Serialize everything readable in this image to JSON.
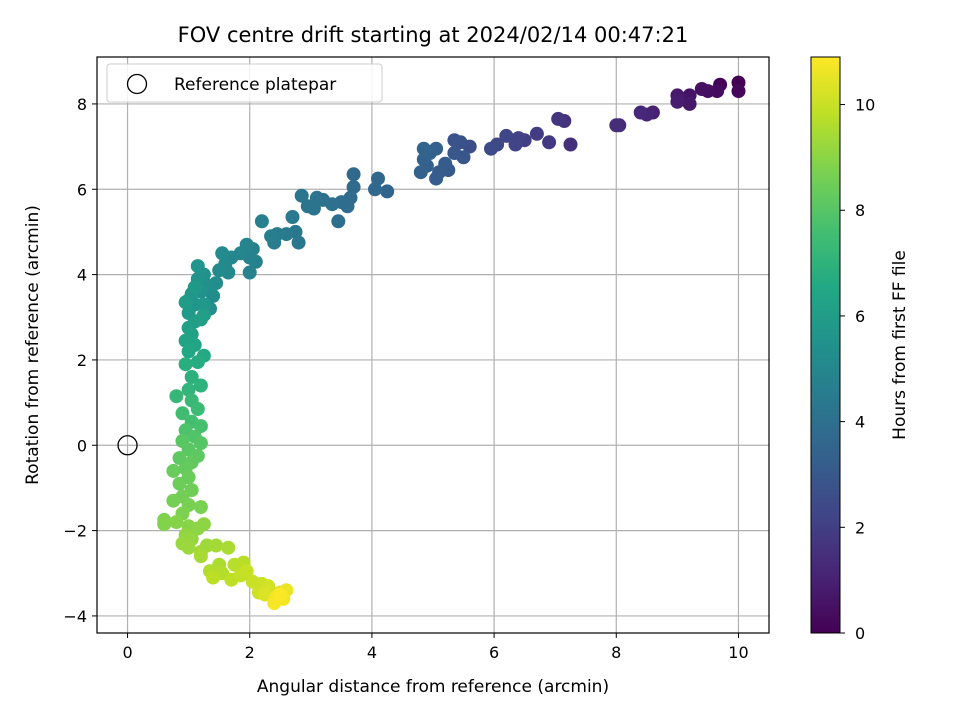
{
  "chart_data": {
    "type": "scatter",
    "title": "FOV centre drift starting at 2024/02/14 00:47:21",
    "xlabel": "Angular distance from reference (arcmin)",
    "ylabel": "Rotation from reference (arcmin)",
    "xlim": [
      -0.5,
      10.5
    ],
    "ylim": [
      -4.4,
      9.1
    ],
    "x_ticks": [
      0,
      2,
      4,
      6,
      8,
      10
    ],
    "y_ticks": [
      -4,
      -2,
      0,
      2,
      4,
      6,
      8
    ],
    "x_tick_labels": [
      "0",
      "2",
      "4",
      "6",
      "8",
      "10"
    ],
    "y_tick_labels": [
      "−4",
      "−2",
      "0",
      "2",
      "4",
      "6",
      "8"
    ],
    "grid": true,
    "legend": {
      "position": "top-left",
      "label": "Reference platepar"
    },
    "reference_point": {
      "x": 0,
      "y": 0
    },
    "colorbar": {
      "label": "Hours from first FF file",
      "range": [
        0,
        10.9
      ],
      "ticks": [
        0,
        2,
        4,
        6,
        8,
        10
      ],
      "tick_labels": [
        "0",
        "2",
        "4",
        "6",
        "8",
        "10"
      ],
      "colormap": "viridis"
    },
    "series": [
      {
        "points": [
          [
            10.0,
            8.5,
            0.0
          ],
          [
            9.7,
            8.45,
            0.1
          ],
          [
            10.0,
            8.3,
            0.2
          ],
          [
            9.65,
            8.3,
            0.3
          ],
          [
            9.5,
            8.3,
            0.4
          ],
          [
            9.4,
            8.35,
            0.5
          ],
          [
            9.2,
            8.2,
            0.6
          ],
          [
            9.2,
            8.0,
            0.7
          ],
          [
            9.0,
            8.2,
            0.8
          ],
          [
            9.0,
            8.05,
            0.9
          ],
          [
            8.6,
            7.8,
            1.0
          ],
          [
            8.5,
            7.75,
            1.1
          ],
          [
            8.4,
            7.8,
            1.2
          ],
          [
            8.05,
            7.5,
            1.3
          ],
          [
            8.0,
            7.5,
            1.4
          ],
          [
            7.25,
            7.05,
            1.5
          ],
          [
            7.15,
            7.6,
            1.6
          ],
          [
            7.05,
            7.65,
            1.7
          ],
          [
            6.9,
            7.1,
            1.8
          ],
          [
            6.7,
            7.3,
            1.9
          ],
          [
            6.5,
            7.15,
            2.0
          ],
          [
            6.4,
            7.2,
            2.1
          ],
          [
            6.35,
            7.05,
            2.2
          ],
          [
            6.2,
            7.25,
            2.3
          ],
          [
            6.05,
            7.05,
            2.4
          ],
          [
            5.95,
            6.95,
            2.5
          ],
          [
            5.6,
            7.0,
            2.6
          ],
          [
            5.45,
            7.1,
            2.7
          ],
          [
            5.35,
            7.15,
            2.8
          ],
          [
            5.5,
            6.75,
            2.9
          ],
          [
            5.35,
            6.85,
            3.0
          ],
          [
            5.25,
            6.45,
            3.05
          ],
          [
            5.2,
            6.6,
            3.1
          ],
          [
            5.1,
            6.4,
            3.15
          ],
          [
            5.05,
            6.25,
            3.2
          ],
          [
            5.05,
            6.95,
            3.25
          ],
          [
            4.9,
            6.55,
            3.3
          ],
          [
            4.85,
            6.7,
            3.35
          ],
          [
            4.8,
            6.4,
            3.4
          ],
          [
            4.95,
            6.85,
            3.45
          ],
          [
            4.85,
            6.95,
            3.5
          ],
          [
            4.25,
            5.95,
            3.55
          ],
          [
            4.1,
            6.25,
            3.6
          ],
          [
            4.05,
            6.0,
            3.65
          ],
          [
            3.7,
            6.35,
            3.7
          ],
          [
            3.7,
            6.05,
            3.75
          ],
          [
            3.65,
            5.8,
            3.8
          ],
          [
            3.6,
            5.6,
            3.85
          ],
          [
            3.5,
            5.7,
            3.9
          ],
          [
            3.45,
            5.25,
            3.95
          ],
          [
            3.35,
            5.65,
            4.0
          ],
          [
            3.2,
            5.75,
            4.05
          ],
          [
            3.1,
            5.8,
            4.1
          ],
          [
            3.05,
            5.55,
            4.15
          ],
          [
            2.95,
            5.6,
            4.2
          ],
          [
            2.85,
            5.85,
            4.25
          ],
          [
            2.8,
            4.75,
            4.3
          ],
          [
            2.75,
            5.0,
            4.35
          ],
          [
            2.7,
            5.35,
            4.4
          ],
          [
            2.6,
            4.95,
            4.45
          ],
          [
            2.45,
            4.95,
            4.5
          ],
          [
            2.4,
            4.75,
            4.55
          ],
          [
            2.35,
            4.9,
            4.6
          ],
          [
            2.2,
            5.25,
            4.65
          ],
          [
            2.1,
            4.3,
            4.7
          ],
          [
            2.05,
            4.6,
            4.75
          ],
          [
            2.0,
            4.4,
            4.8
          ],
          [
            2.0,
            4.05,
            4.85
          ],
          [
            1.95,
            4.7,
            4.9
          ],
          [
            1.85,
            4.5,
            4.95
          ],
          [
            1.7,
            4.4,
            5.0
          ],
          [
            1.65,
            4.05,
            5.05
          ],
          [
            1.6,
            4.25,
            5.1
          ],
          [
            1.55,
            4.5,
            5.15
          ],
          [
            1.5,
            4.1,
            5.2
          ],
          [
            1.45,
            3.8,
            5.25
          ],
          [
            1.4,
            3.5,
            5.3
          ],
          [
            1.35,
            3.2,
            5.35
          ],
          [
            1.3,
            3.75,
            5.4
          ],
          [
            1.25,
            4.0,
            5.45
          ],
          [
            1.2,
            3.6,
            5.5
          ],
          [
            1.15,
            3.9,
            5.55
          ],
          [
            1.15,
            4.2,
            5.6
          ],
          [
            1.1,
            3.3,
            5.65
          ],
          [
            1.05,
            3.55,
            5.7
          ],
          [
            1.0,
            3.4,
            5.75
          ],
          [
            1.25,
            3.3,
            5.8
          ],
          [
            1.1,
            3.7,
            5.85
          ],
          [
            1.0,
            3.1,
            5.9
          ],
          [
            0.95,
            3.35,
            5.95
          ],
          [
            1.25,
            3.05,
            6.0
          ],
          [
            1.1,
            2.9,
            6.05
          ],
          [
            1.0,
            2.75,
            6.1
          ],
          [
            1.2,
            2.95,
            6.15
          ],
          [
            1.05,
            2.6,
            6.2
          ],
          [
            0.95,
            2.45,
            6.3
          ],
          [
            1.1,
            2.35,
            6.4
          ],
          [
            1.0,
            2.2,
            6.5
          ],
          [
            1.25,
            2.1,
            6.6
          ],
          [
            1.15,
            1.95,
            6.7
          ],
          [
            0.95,
            1.9,
            6.8
          ],
          [
            1.05,
            1.6,
            6.9
          ],
          [
            1.2,
            1.4,
            7.0
          ],
          [
            1.0,
            1.3,
            7.1
          ],
          [
            0.8,
            1.15,
            7.2
          ],
          [
            1.05,
            1.05,
            7.3
          ],
          [
            1.15,
            0.85,
            7.4
          ],
          [
            0.9,
            0.75,
            7.5
          ],
          [
            1.05,
            0.55,
            7.6
          ],
          [
            1.2,
            0.45,
            7.7
          ],
          [
            0.95,
            0.35,
            7.8
          ],
          [
            1.1,
            0.2,
            7.9
          ],
          [
            1.2,
            0.05,
            8.0
          ],
          [
            0.9,
            0.1,
            8.05
          ],
          [
            1.0,
            -0.1,
            8.1
          ],
          [
            1.15,
            -0.25,
            8.15
          ],
          [
            0.85,
            -0.3,
            8.2
          ],
          [
            1.05,
            -0.4,
            8.25
          ],
          [
            0.95,
            -0.55,
            8.3
          ],
          [
            0.75,
            -0.6,
            8.35
          ],
          [
            1.0,
            -0.75,
            8.4
          ],
          [
            0.85,
            -0.9,
            8.45
          ],
          [
            1.05,
            -1.05,
            8.5
          ],
          [
            0.9,
            -1.2,
            8.55
          ],
          [
            0.75,
            -1.3,
            8.6
          ],
          [
            1.0,
            -1.4,
            8.65
          ],
          [
            1.2,
            -1.45,
            8.7
          ],
          [
            0.9,
            -1.6,
            8.75
          ],
          [
            0.6,
            -1.75,
            8.8
          ],
          [
            0.6,
            -1.85,
            8.85
          ],
          [
            0.8,
            -1.8,
            8.9
          ],
          [
            1.0,
            -1.9,
            8.95
          ],
          [
            1.15,
            -1.95,
            9.0
          ],
          [
            1.25,
            -1.85,
            9.05
          ],
          [
            0.95,
            -2.1,
            9.1
          ],
          [
            1.05,
            -2.2,
            9.15
          ],
          [
            0.9,
            -2.3,
            9.2
          ],
          [
            1.0,
            -2.4,
            9.25
          ],
          [
            1.3,
            -2.35,
            9.3
          ],
          [
            1.2,
            -2.5,
            9.35
          ],
          [
            1.45,
            -2.35,
            9.4
          ],
          [
            1.2,
            -2.6,
            9.45
          ],
          [
            1.65,
            -2.4,
            9.5
          ],
          [
            1.5,
            -2.8,
            9.55
          ],
          [
            1.35,
            -2.95,
            9.6
          ],
          [
            1.55,
            -3.0,
            9.65
          ],
          [
            1.75,
            -2.8,
            9.7
          ],
          [
            1.9,
            -2.75,
            9.75
          ],
          [
            1.4,
            -3.1,
            9.8
          ],
          [
            1.7,
            -3.15,
            9.85
          ],
          [
            1.85,
            -3.05,
            9.9
          ],
          [
            1.95,
            -2.95,
            9.95
          ],
          [
            2.05,
            -3.2,
            10.0
          ],
          [
            2.2,
            -3.25,
            10.05
          ],
          [
            2.15,
            -3.45,
            10.1
          ],
          [
            2.3,
            -3.3,
            10.15
          ],
          [
            2.35,
            -3.45,
            10.2
          ],
          [
            2.25,
            -3.5,
            10.3
          ],
          [
            2.5,
            -3.45,
            10.4
          ],
          [
            2.4,
            -3.6,
            10.5
          ],
          [
            2.6,
            -3.4,
            10.6
          ],
          [
            2.45,
            -3.55,
            10.7
          ],
          [
            2.55,
            -3.6,
            10.75
          ],
          [
            2.4,
            -3.7,
            10.8
          ],
          [
            2.5,
            -3.5,
            10.85
          ]
        ]
      }
    ]
  }
}
